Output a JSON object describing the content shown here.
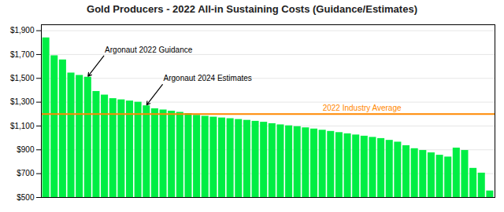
{
  "chart_data": {
    "type": "bar",
    "title": "Gold Producers - 2022 All-in Sustaining Costs (Guidance/Estimates)",
    "categories": [
      null,
      null,
      null,
      null,
      null,
      null,
      null,
      null,
      null,
      null,
      null,
      null,
      null,
      null,
      null,
      null,
      null,
      null,
      null,
      null,
      null,
      null,
      null,
      null,
      null,
      null,
      null,
      null,
      null,
      null,
      null,
      null,
      null,
      null,
      null,
      null,
      null,
      null,
      null,
      null,
      null,
      null,
      null,
      null,
      null,
      null,
      null,
      null,
      null,
      null,
      null,
      null,
      null,
      null
    ],
    "values": [
      1840,
      1690,
      1655,
      1545,
      1525,
      1510,
      1390,
      1360,
      1330,
      1320,
      1310,
      1300,
      1270,
      1245,
      1235,
      1225,
      1215,
      1205,
      1190,
      1182,
      1175,
      1168,
      1162,
      1155,
      1148,
      1140,
      1132,
      1120,
      1110,
      1102,
      1095,
      1085,
      1075,
      1065,
      1055,
      1045,
      1035,
      1025,
      1015,
      1005,
      995,
      980,
      965,
      935,
      910,
      895,
      875,
      855,
      840,
      915,
      895,
      745,
      705,
      555
    ],
    "color": "#00ee44",
    "ylim": [
      500,
      1950
    ],
    "yticks": [
      {
        "value": 500,
        "label": "$500"
      },
      {
        "value": 700,
        "label": "$700"
      },
      {
        "value": 900,
        "label": "$900"
      },
      {
        "value": 1100,
        "label": "$1,100"
      },
      {
        "value": 1300,
        "label": "$1,300"
      },
      {
        "value": 1500,
        "label": "$1,500"
      },
      {
        "value": 1700,
        "label": "$1,700"
      },
      {
        "value": 1900,
        "label": "$1,900"
      }
    ],
    "grid": true,
    "tick_labels": "y",
    "reference_line": {
      "label": "2022 Industry Average",
      "value": 1200,
      "color": "#ff8800"
    },
    "annotations": [
      {
        "text": "Argonaut 2022 Guidance",
        "index": 5
      },
      {
        "text": "Argonaut 2024 Estimates",
        "index": 12
      }
    ]
  }
}
